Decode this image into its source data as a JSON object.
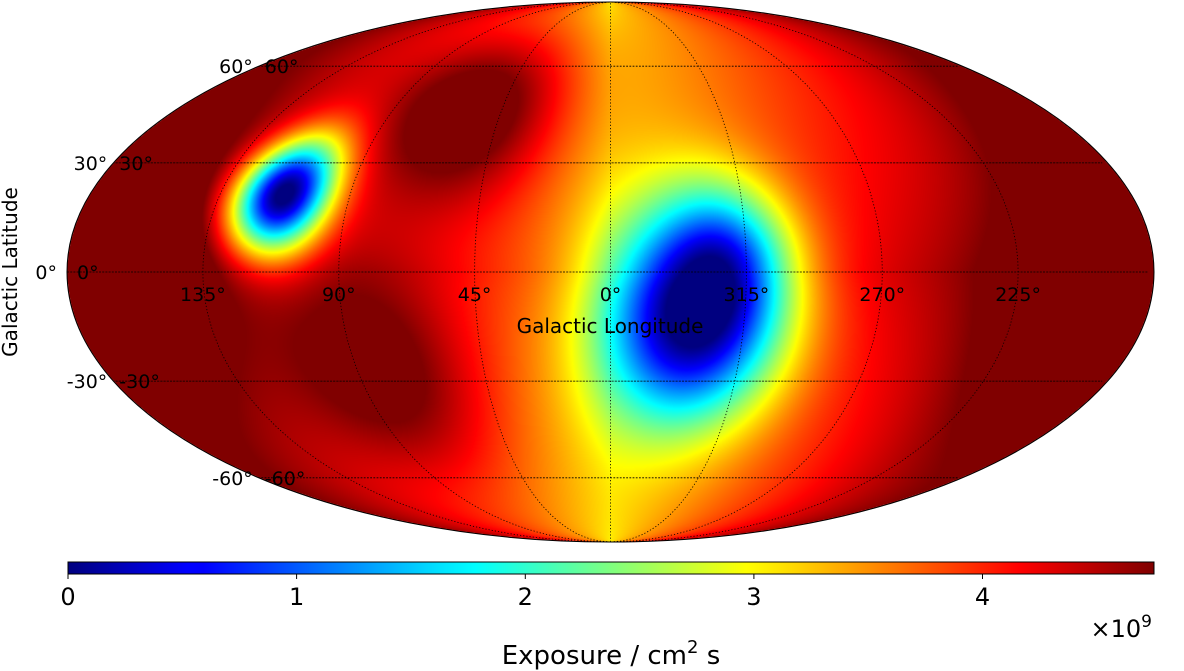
{
  "chart_data": {
    "type": "heatmap",
    "projection": "mollweide",
    "colormap": "jet",
    "xlabel": "Galactic Longitude",
    "ylabel": "Galactic Latitude",
    "colorbar": {
      "label_prefix": "Exposure / cm",
      "label_sup": "2",
      "label_suffix": " s",
      "multiplier_prefix": "×10",
      "multiplier_sup": "9",
      "range": [
        0,
        4.75
      ],
      "ticks": [
        0,
        1,
        2,
        3,
        4
      ],
      "tick_labels": [
        "0",
        "1",
        "2",
        "3",
        "4"
      ]
    },
    "longitude_ticks": [
      135,
      90,
      45,
      0,
      315,
      270,
      225
    ],
    "longitude_tick_labels": [
      "135°",
      "90°",
      "45°",
      "0°",
      "315°",
      "270°",
      "225°"
    ],
    "latitude_ticks": [
      60,
      30,
      0,
      -30,
      -60
    ],
    "latitude_tick_labels": [
      "60°",
      "30°",
      "0°",
      "-30°",
      "-60°"
    ],
    "gridlines": "dotted",
    "features": [
      {
        "description": "minimum exposure region",
        "center_lon": 330,
        "center_lat": -12,
        "value": 0
      },
      {
        "description": "minimum exposure region",
        "center_lon": 112,
        "center_lat": 20,
        "value": 0.2
      },
      {
        "description": "maximum exposure ridge",
        "center_lon": 60,
        "center_lat": 45,
        "value": 4.75
      }
    ]
  }
}
